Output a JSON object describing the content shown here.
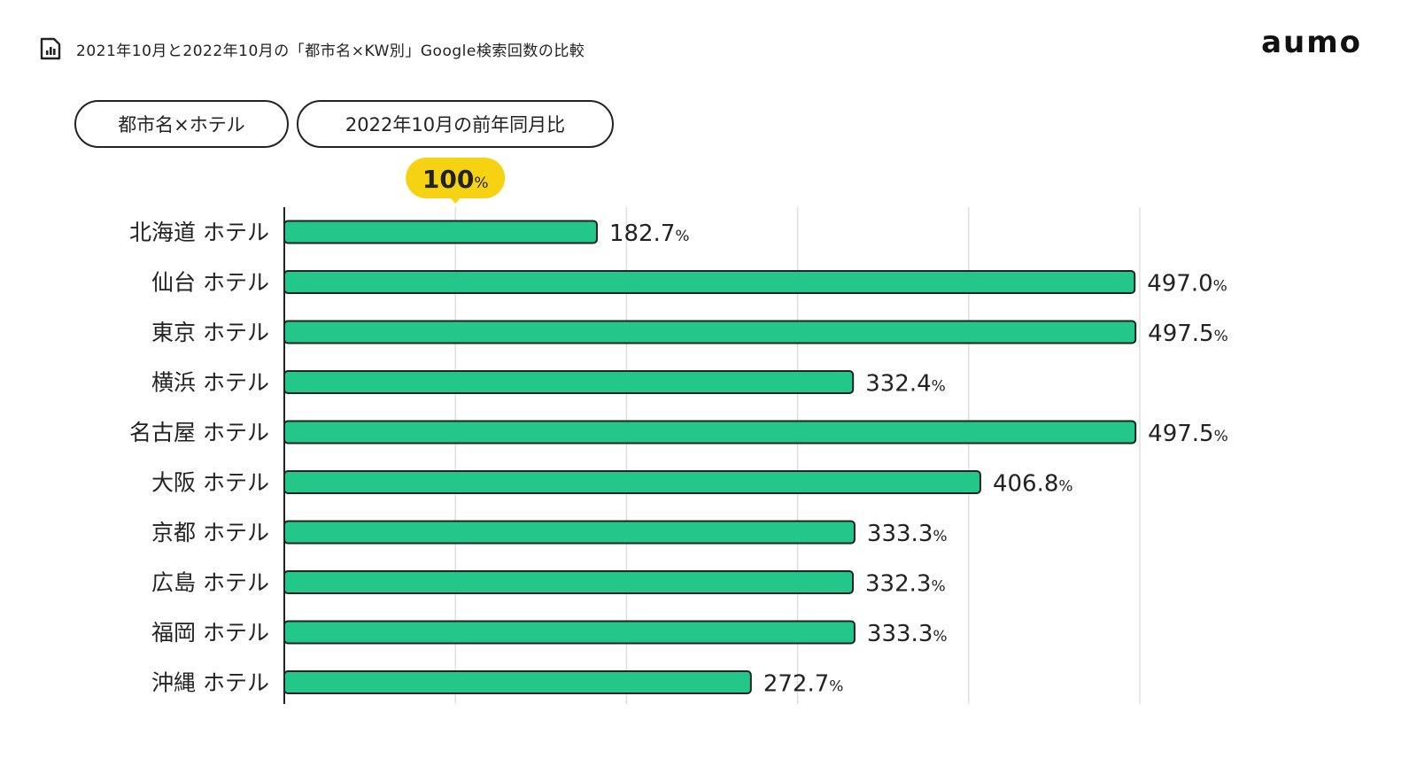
{
  "header": {
    "title": "2021年10月と2022年10月の「都市名×KW別」Google検索回数の比較",
    "icon": "bar-chart-document-icon"
  },
  "logo": {
    "text": "aumo"
  },
  "filters": [
    {
      "label": "都市名×ホテル"
    },
    {
      "label": "2022年10月の前年同月比"
    }
  ],
  "colors": {
    "bar": "#23c78a",
    "bar_stroke": "#222222",
    "badge": "#f5d313",
    "grid": "#e0e0e0"
  },
  "chart_data": {
    "type": "bar",
    "orientation": "horizontal",
    "categories": [
      "北海道 ホテル",
      "仙台 ホテル",
      "東京 ホテル",
      "横浜 ホテル",
      "名古屋 ホテル",
      "大阪 ホテル",
      "京都 ホテル",
      "広島 ホテル",
      "福岡 ホテル",
      "沖縄 ホテル"
    ],
    "values": [
      182.7,
      497.0,
      497.5,
      332.4,
      497.5,
      406.8,
      333.3,
      332.3,
      333.3,
      272.7
    ],
    "value_labels": [
      "182.7",
      "497.0",
      "497.5",
      "332.4",
      "497.5",
      "406.8",
      "333.3",
      "332.3",
      "333.3",
      "272.7"
    ],
    "unit": "%",
    "xlim": [
      0,
      500
    ],
    "gridlines": [
      100,
      200,
      300,
      400,
      500
    ],
    "reference": {
      "value": 100,
      "label": "100",
      "unit": "%"
    },
    "grid": true,
    "legend": "none"
  }
}
